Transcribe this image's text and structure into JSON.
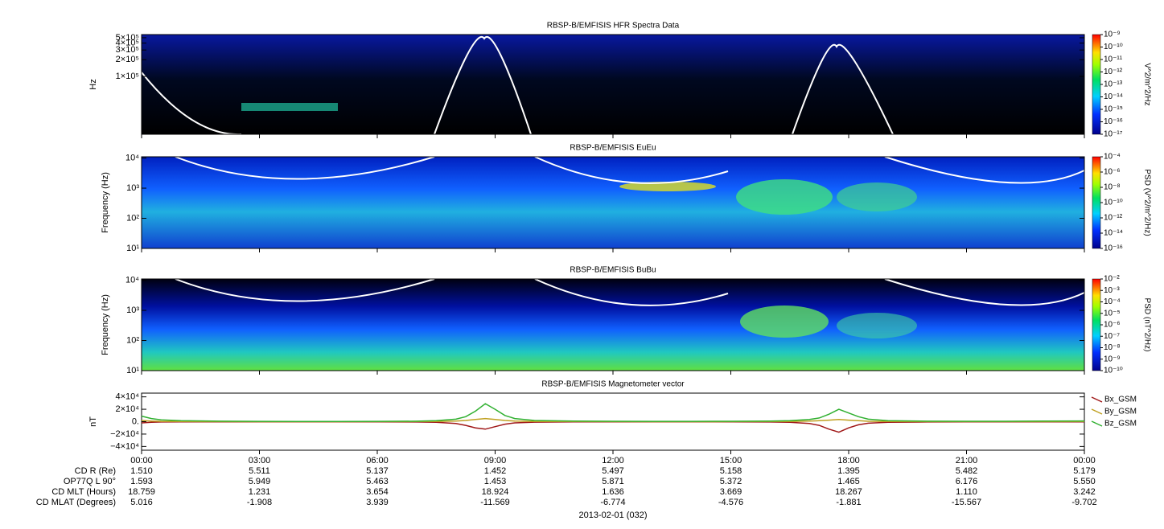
{
  "chart_data": [
    {
      "type": "spectrogram",
      "title": "RBSP-B/EMFISIS  HFR Spectra Data",
      "ylabel": "Hz",
      "log_y": true,
      "ylim": [
        9000,
        570000
      ],
      "yticks": [
        {
          "value": 500000,
          "label": "5×10⁵"
        },
        {
          "value": 400000,
          "label": "4×10⁵"
        },
        {
          "value": 300000,
          "label": "3×10⁵"
        },
        {
          "value": 200000,
          "label": "2×10⁵"
        },
        {
          "value": 100000,
          "label": "1×10⁵"
        }
      ],
      "colorbar": {
        "label": "V^2/m^2/Hz",
        "lim": [
          1e-17,
          1e-09
        ],
        "ticks": [
          {
            "value": 1e-09,
            "label": "10⁻⁹"
          },
          {
            "value": 1e-10,
            "label": "10⁻¹⁰"
          },
          {
            "value": 1e-11,
            "label": "10⁻¹¹"
          },
          {
            "value": 1e-12,
            "label": "10⁻¹²"
          },
          {
            "value": 1e-13,
            "label": "10⁻¹³"
          },
          {
            "value": 1e-14,
            "label": "10⁻¹⁴"
          },
          {
            "value": 1e-15,
            "label": "10⁻¹⁵"
          },
          {
            "value": 1e-16,
            "label": "10⁻¹⁶"
          },
          {
            "value": 1e-17,
            "label": "10⁻¹⁷"
          }
        ]
      }
    },
    {
      "type": "spectrogram",
      "title": "RBSP-B/EMFISIS  EuEu",
      "ylabel": "Frequency (Hz)",
      "log_y": true,
      "ylim": [
        10,
        11000
      ],
      "yticks": [
        {
          "value": 10,
          "label": "10¹"
        },
        {
          "value": 100,
          "label": "10²"
        },
        {
          "value": 1000,
          "label": "10³"
        },
        {
          "value": 10000,
          "label": "10⁴"
        }
      ],
      "colorbar": {
        "label": "PSD (V^2/m^2/Hz)",
        "lim": [
          1e-16,
          0.0001
        ],
        "ticks": [
          {
            "value": 0.0001,
            "label": "10⁻⁴"
          },
          {
            "value": 1e-06,
            "label": "10⁻⁶"
          },
          {
            "value": 1e-08,
            "label": "10⁻⁸"
          },
          {
            "value": 1e-10,
            "label": "10⁻¹⁰"
          },
          {
            "value": 1e-12,
            "label": "10⁻¹²"
          },
          {
            "value": 1e-14,
            "label": "10⁻¹⁴"
          },
          {
            "value": 1e-16,
            "label": "10⁻¹⁶"
          }
        ]
      }
    },
    {
      "type": "spectrogram",
      "title": "RBSP-B/EMFISIS  BuBu",
      "ylabel": "Frequency (Hz)",
      "log_y": true,
      "ylim": [
        10,
        11000
      ],
      "yticks": [
        {
          "value": 10,
          "label": "10¹"
        },
        {
          "value": 100,
          "label": "10²"
        },
        {
          "value": 1000,
          "label": "10³"
        },
        {
          "value": 10000,
          "label": "10⁴"
        }
      ],
      "colorbar": {
        "label": "PSD (nT^2/Hz)",
        "lim": [
          1e-10,
          0.01
        ],
        "ticks": [
          {
            "value": 0.01,
            "label": "10⁻²"
          },
          {
            "value": 0.001,
            "label": "10⁻³"
          },
          {
            "value": 0.0001,
            "label": "10⁻⁴"
          },
          {
            "value": 1e-05,
            "label": "10⁻⁵"
          },
          {
            "value": 1e-06,
            "label": "10⁻⁶"
          },
          {
            "value": 1e-07,
            "label": "10⁻⁷"
          },
          {
            "value": 1e-08,
            "label": "10⁻⁸"
          },
          {
            "value": 1e-09,
            "label": "10⁻⁹"
          },
          {
            "value": 1e-10,
            "label": "10⁻¹⁰"
          }
        ]
      }
    },
    {
      "type": "line",
      "title": "RBSP-B/EMFISIS  Magnetometer vector",
      "ylabel": "nT",
      "ylim": [
        -46000,
        46000
      ],
      "yticks": [
        {
          "value": 40000,
          "label": "4×10⁴"
        },
        {
          "value": 20000,
          "label": "2×10⁴"
        },
        {
          "value": 0,
          "label": "0."
        },
        {
          "value": -20000,
          "label": "−2×10⁴"
        },
        {
          "value": -40000,
          "label": "−4×10⁴"
        }
      ],
      "x": [
        0,
        0.25,
        0.5,
        1,
        2,
        3,
        4,
        5,
        6,
        7,
        7.5,
        8,
        8.25,
        8.5,
        8.75,
        9,
        9.25,
        9.5,
        10,
        11,
        12,
        13,
        14,
        15,
        16,
        16.5,
        17,
        17.25,
        17.5,
        17.75,
        18,
        18.25,
        18.5,
        19,
        20,
        21,
        22,
        23,
        24
      ],
      "series": [
        {
          "name": "Bx_GSM",
          "color": "#a01818",
          "values": [
            -2000,
            -1000,
            -500,
            -300,
            -200,
            -200,
            -200,
            -200,
            -300,
            -500,
            -1000,
            -3000,
            -6000,
            -10000,
            -12000,
            -8000,
            -4000,
            -2000,
            -800,
            -400,
            -300,
            -200,
            -200,
            -300,
            -500,
            -1000,
            -3000,
            -6000,
            -12000,
            -17000,
            -10000,
            -5000,
            -2500,
            -1000,
            -500,
            -300,
            -300,
            -300,
            -300
          ]
        },
        {
          "name": "By_GSM",
          "color": "#c0a020",
          "values": [
            2000,
            1000,
            500,
            200,
            100,
            50,
            50,
            50,
            100,
            200,
            400,
            1000,
            2000,
            3500,
            5000,
            3500,
            2000,
            1000,
            400,
            200,
            100,
            50,
            50,
            100,
            200,
            400,
            900,
            1500,
            2500,
            3500,
            2500,
            1500,
            700,
            300,
            150,
            100,
            100,
            150,
            200
          ]
        },
        {
          "name": "Bz_GSM",
          "color": "#30b030",
          "values": [
            9000,
            5000,
            3000,
            1500,
            800,
            500,
            400,
            400,
            500,
            800,
            1500,
            4000,
            8000,
            17000,
            29000,
            20000,
            10000,
            5000,
            2000,
            1000,
            700,
            500,
            500,
            600,
            900,
            1500,
            3500,
            6000,
            12000,
            20000,
            14000,
            8000,
            4000,
            1500,
            800,
            600,
            700,
            900,
            1200
          ]
        }
      ]
    }
  ],
  "time_axis": {
    "xlim": [
      0,
      24
    ],
    "label": "2013-02-01 (032)",
    "xticks": [
      {
        "value": 0,
        "label": "00:00"
      },
      {
        "value": 3,
        "label": "03:00"
      },
      {
        "value": 6,
        "label": "06:00"
      },
      {
        "value": 9,
        "label": "09:00"
      },
      {
        "value": 12,
        "label": "12:00"
      },
      {
        "value": 15,
        "label": "15:00"
      },
      {
        "value": 18,
        "label": "18:00"
      },
      {
        "value": 21,
        "label": "21:00"
      },
      {
        "value": 24,
        "label": "00:00"
      }
    ]
  },
  "ephemeris": {
    "rows": [
      {
        "label": "CD R (Re)",
        "values": [
          "1.510",
          "5.511",
          "5.137",
          "1.452",
          "5.497",
          "5.158",
          "1.395",
          "5.482",
          "5.179"
        ]
      },
      {
        "label": "OP77Q L 90°",
        "values": [
          "1.593",
          "5.949",
          "5.463",
          "1.453",
          "5.871",
          "5.372",
          "1.465",
          "6.176",
          "5.550"
        ]
      },
      {
        "label": "CD MLT (Hours)",
        "values": [
          "18.759",
          "1.231",
          "3.654",
          "18.924",
          "1.636",
          "3.669",
          "18.267",
          "1.110",
          "3.242"
        ]
      },
      {
        "label": "CD MLAT (Degrees)",
        "values": [
          "5.016",
          "-1.908",
          "3.939",
          "-11.569",
          "-6.774",
          "-4.576",
          "-1.881",
          "-15.567",
          "-9.702"
        ]
      }
    ]
  }
}
